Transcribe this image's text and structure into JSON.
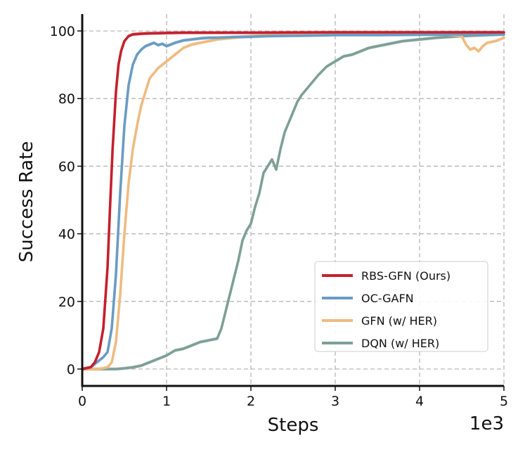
{
  "chart_data": {
    "type": "line",
    "xlabel": "Steps",
    "ylabel": "Success Rate",
    "x_offset_label": "1e3",
    "xlim": [
      0,
      5
    ],
    "ylim": [
      -5,
      105
    ],
    "x_ticks": [
      0,
      1,
      2,
      3,
      4,
      5
    ],
    "y_ticks": [
      0,
      20,
      40,
      60,
      80,
      100
    ],
    "x_tick_labels": [
      "0",
      "1",
      "2",
      "3",
      "4",
      "5"
    ],
    "y_tick_labels": [
      "0",
      "20",
      "40",
      "60",
      "80",
      "100"
    ],
    "grid": true,
    "legend_position": "lower-right",
    "series": [
      {
        "name": "RBS-GFN (Ours)",
        "color": "#c4202e",
        "x": [
          0,
          0.1,
          0.15,
          0.2,
          0.25,
          0.3,
          0.33,
          0.36,
          0.4,
          0.43,
          0.46,
          0.5,
          0.55,
          0.6,
          0.7,
          0.8,
          1.0,
          1.2,
          1.5,
          2.0,
          3.0,
          4.0,
          5.0
        ],
        "y": [
          0,
          0.5,
          2,
          5,
          12,
          30,
          48,
          65,
          82,
          90,
          94,
          97,
          98.5,
          99,
          99.2,
          99.3,
          99.4,
          99.5,
          99.5,
          99.5,
          99.6,
          99.6,
          99.6
        ]
      },
      {
        "name": "OC-GAFN",
        "color": "#6a9bc3",
        "x": [
          0,
          0.1,
          0.15,
          0.2,
          0.25,
          0.3,
          0.35,
          0.4,
          0.45,
          0.5,
          0.55,
          0.6,
          0.65,
          0.7,
          0.75,
          0.8,
          0.85,
          0.9,
          0.95,
          1.0,
          1.1,
          1.2,
          1.3,
          1.4,
          1.5,
          1.6,
          1.8,
          2.0,
          2.2,
          2.5,
          2.8,
          3.0,
          3.5,
          4.0,
          4.5,
          5.0
        ],
        "y": [
          0,
          0.5,
          1.5,
          2.5,
          3.5,
          5,
          12,
          28,
          52,
          72,
          84,
          90,
          93,
          94.5,
          95.5,
          96,
          96.5,
          95.8,
          96.2,
          95.5,
          96.5,
          97.2,
          97.5,
          97.8,
          98,
          98,
          98.2,
          98.3,
          98.5,
          98.6,
          98.7,
          98.8,
          98.8,
          98.9,
          99,
          99
        ]
      },
      {
        "name": "GFN (w/ HER)",
        "color": "#efbb80",
        "x": [
          0,
          0.2,
          0.3,
          0.35,
          0.4,
          0.45,
          0.5,
          0.55,
          0.6,
          0.65,
          0.7,
          0.75,
          0.8,
          0.9,
          1.0,
          1.1,
          1.2,
          1.3,
          1.4,
          1.5,
          1.6,
          1.8,
          2.0,
          2.3,
          2.6,
          3.0,
          3.3,
          3.6,
          4.0,
          4.3,
          4.5,
          4.55,
          4.6,
          4.65,
          4.7,
          4.75,
          4.8,
          4.9,
          5.0
        ],
        "y": [
          0,
          0,
          0.5,
          2,
          8,
          22,
          40,
          55,
          65,
          72,
          78,
          82,
          86,
          89,
          91,
          93,
          95,
          96,
          96.5,
          97,
          97.5,
          98,
          98.5,
          98.8,
          99,
          99,
          99.1,
          99.2,
          99.2,
          99,
          98.5,
          96,
          94.5,
          95,
          94,
          95.5,
          96.5,
          97,
          98
        ]
      },
      {
        "name": "DQN (w/ HER)",
        "color": "#7d9f98",
        "x": [
          0,
          0.4,
          0.5,
          0.6,
          0.7,
          0.8,
          0.9,
          1.0,
          1.1,
          1.2,
          1.3,
          1.4,
          1.5,
          1.6,
          1.65,
          1.7,
          1.75,
          1.8,
          1.85,
          1.9,
          1.95,
          2.0,
          2.05,
          2.1,
          2.15,
          2.2,
          2.25,
          2.3,
          2.35,
          2.4,
          2.45,
          2.5,
          2.55,
          2.6,
          2.7,
          2.8,
          2.9,
          3.0,
          3.1,
          3.2,
          3.3,
          3.4,
          3.5,
          3.6,
          3.8,
          4.0,
          4.2,
          4.5,
          5.0
        ],
        "y": [
          0,
          0,
          0.2,
          0.5,
          1,
          2,
          3,
          4,
          5.5,
          6,
          7,
          8,
          8.5,
          9,
          12,
          17,
          22,
          27,
          32,
          38,
          41,
          43,
          48,
          52,
          58,
          60,
          62,
          59,
          65,
          70,
          73,
          76,
          79,
          81,
          84,
          87,
          89.5,
          91,
          92.5,
          93,
          94,
          95,
          95.5,
          96,
          97,
          97.5,
          98,
          98.5,
          99
        ]
      }
    ]
  }
}
